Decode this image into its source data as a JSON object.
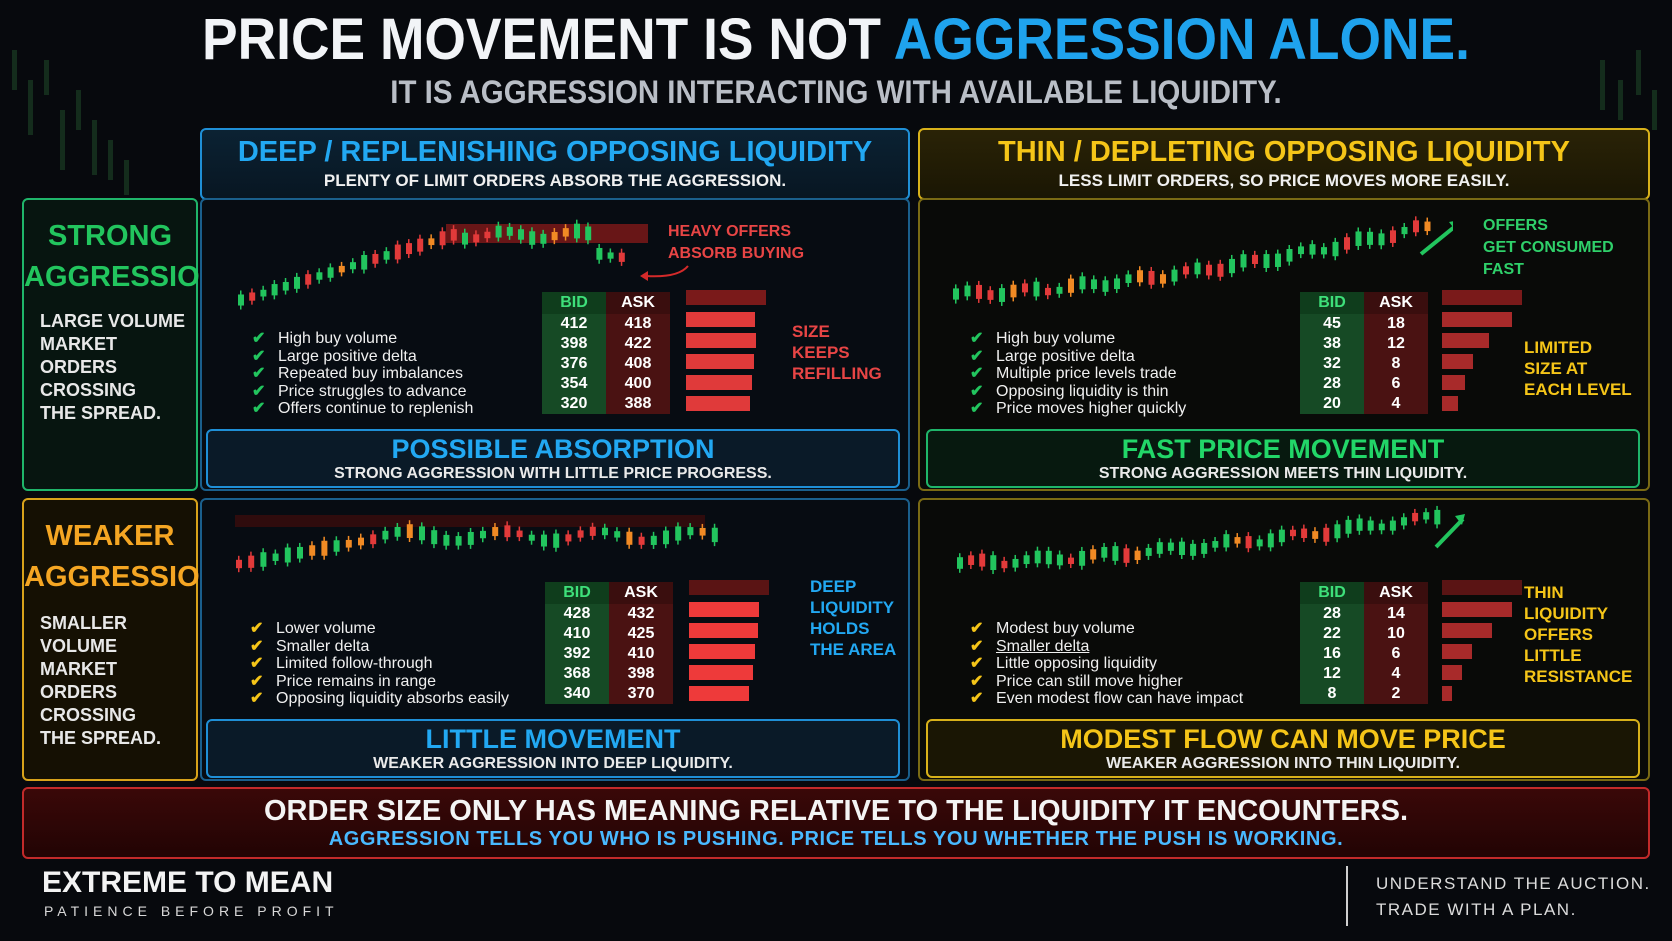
{
  "title": {
    "part1": "PRICE MOVEMENT IS NOT ",
    "part2": "AGGRESSION ALONE."
  },
  "subtitle": "IT IS AGGRESSION INTERACTING WITH AVAILABLE LIQUIDITY.",
  "colors": {
    "blue": "#1fa3ee",
    "yellow": "#f5c518",
    "green": "#22c55e",
    "red": "#d92b2b",
    "orange": "#f5a623"
  },
  "columns": {
    "deep": {
      "title": "DEEP / REPLENISHING OPPOSING LIQUIDITY",
      "sub": "PLENTY OF LIMIT ORDERS ABSORB THE AGGRESSION."
    },
    "thin": {
      "title": "THIN / DEPLETING OPPOSING LIQUIDITY",
      "sub": "LESS LIMIT ORDERS, SO PRICE MOVES MORE EASILY."
    }
  },
  "rows": {
    "strong": {
      "title1": "STRONG",
      "title2": "AGGRESSION",
      "desc": [
        "LARGE VOLUME",
        "MARKET ORDERS",
        "CROSSING",
        "THE SPREAD."
      ]
    },
    "weak": {
      "title1": "WEAKER",
      "title2": "AGGRESSION",
      "desc": [
        "SMALLER VOLUME",
        "MARKET ORDERS",
        "CROSSING",
        "THE SPREAD."
      ]
    }
  },
  "quadrants": {
    "q1": {
      "checks": [
        "High buy volume",
        "Large positive delta",
        "Repeated buy imbalances",
        "Price struggles to advance",
        "Offers continue to replenish"
      ],
      "book_header": {
        "bid": "BID",
        "ask": "ASK"
      },
      "book": [
        {
          "bid": "412",
          "ask": "418"
        },
        {
          "bid": "398",
          "ask": "422"
        },
        {
          "bid": "376",
          "ask": "408"
        },
        {
          "bid": "354",
          "ask": "400"
        },
        {
          "bid": "320",
          "ask": "388"
        }
      ],
      "side_note": [
        "SIZE",
        "KEEPS",
        "REFILLING"
      ],
      "chart_note": [
        "HEAVY OFFERS",
        "ABSORB BUYING"
      ],
      "result_title": "POSSIBLE ABSORPTION",
      "result_sub": "STRONG AGGRESSION WITH LITTLE PRICE PROGRESS."
    },
    "q2": {
      "checks": [
        "High buy volume",
        "Large positive delta",
        "Multiple price levels trade",
        "Opposing liquidity is thin",
        "Price moves higher quickly"
      ],
      "book_header": {
        "bid": "BID",
        "ask": "ASK"
      },
      "book": [
        {
          "bid": "45",
          "ask": "18"
        },
        {
          "bid": "38",
          "ask": "12"
        },
        {
          "bid": "32",
          "ask": "8"
        },
        {
          "bid": "28",
          "ask": "6"
        },
        {
          "bid": "20",
          "ask": "4"
        }
      ],
      "side_note": [
        "LIMITED",
        "SIZE AT",
        "EACH LEVEL"
      ],
      "chart_note": [
        "OFFERS",
        "GET CONSUMED",
        "FAST"
      ],
      "result_title": "FAST PRICE MOVEMENT",
      "result_sub": "STRONG AGGRESSION MEETS THIN LIQUIDITY."
    },
    "q3": {
      "checks": [
        "Lower volume",
        "Smaller delta",
        "Limited follow-through",
        "Price remains in range",
        "Opposing liquidity absorbs easily"
      ],
      "book_header": {
        "bid": "BID",
        "ask": "ASK"
      },
      "book": [
        {
          "bid": "428",
          "ask": "432"
        },
        {
          "bid": "410",
          "ask": "425"
        },
        {
          "bid": "392",
          "ask": "410"
        },
        {
          "bid": "368",
          "ask": "398"
        },
        {
          "bid": "340",
          "ask": "370"
        }
      ],
      "side_note": [
        "DEEP",
        "LIQUIDITY",
        "HOLDS",
        "THE AREA"
      ],
      "result_title": "LITTLE MOVEMENT",
      "result_sub": "WEAKER AGGRESSION INTO DEEP LIQUIDITY."
    },
    "q4": {
      "checks": [
        "Modest buy volume",
        "Smaller delta",
        "Little opposing liquidity",
        "Price can still move higher",
        "Even modest flow can have impact"
      ],
      "book_header": {
        "bid": "BID",
        "ask": "ASK"
      },
      "book": [
        {
          "bid": "28",
          "ask": "14"
        },
        {
          "bid": "22",
          "ask": "10"
        },
        {
          "bid": "16",
          "ask": "6"
        },
        {
          "bid": "12",
          "ask": "4"
        },
        {
          "bid": "8",
          "ask": "2"
        }
      ],
      "side_note": [
        "THIN",
        "LIQUIDITY",
        "OFFERS",
        "LITTLE",
        "RESISTANCE"
      ],
      "result_title": "MODEST FLOW CAN MOVE PRICE",
      "result_sub": "WEAKER AGGRESSION INTO THIN LIQUIDITY."
    }
  },
  "bottom": {
    "title": "ORDER SIZE ONLY HAS MEANING RELATIVE TO THE LIQUIDITY IT ENCOUNTERS.",
    "sub": "AGGRESSION TELLS YOU WHO IS PUSHING. PRICE TELLS YOU WHETHER THE PUSH IS WORKING."
  },
  "footer": {
    "brand": "EXTREME TO MEAN",
    "tagline": "PATIENCE BEFORE PROFIT",
    "motto1": "UNDERSTAND THE AUCTION.",
    "motto2": "TRADE WITH A PLAN."
  }
}
